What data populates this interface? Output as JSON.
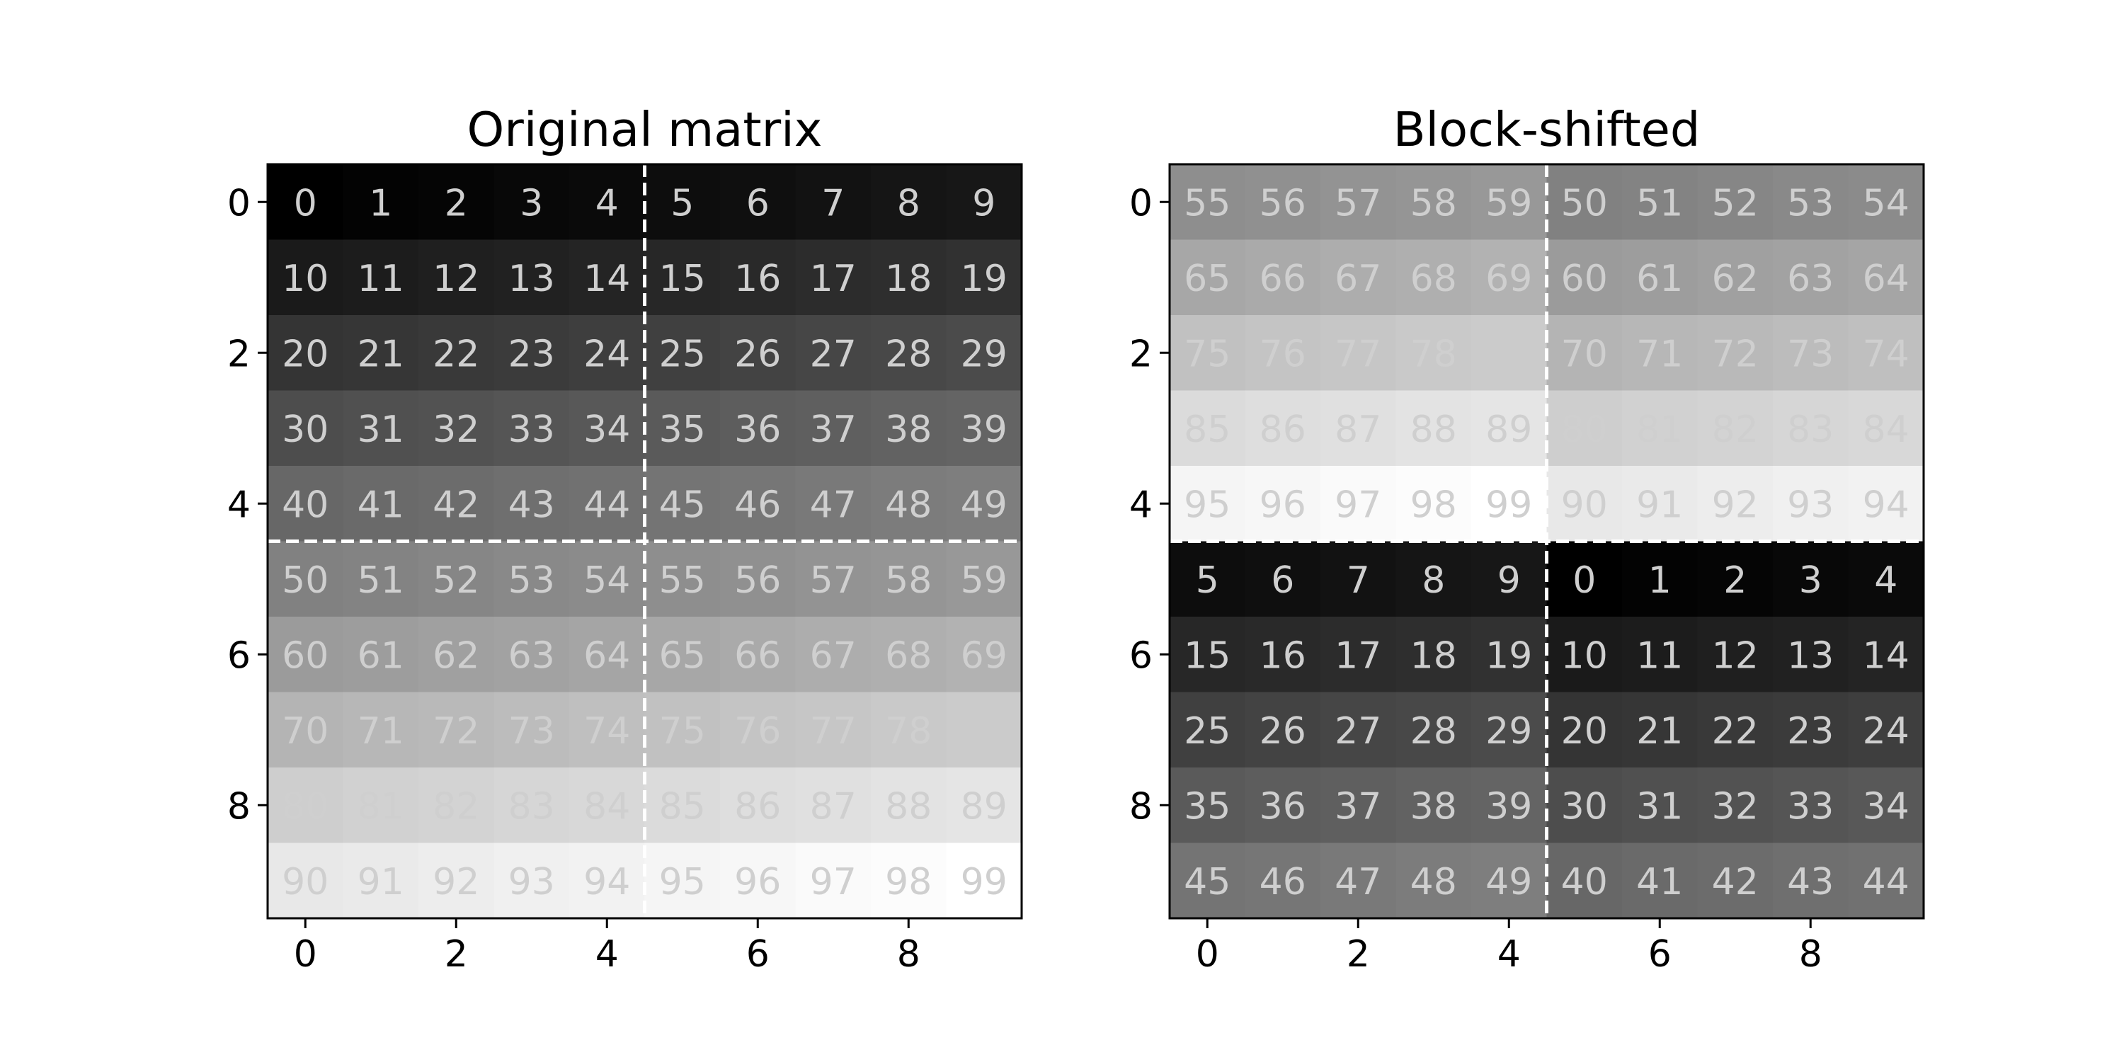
{
  "chart_data": [
    {
      "type": "heatmap",
      "title": "Original matrix",
      "colormap": "grayscale",
      "vmin": 0,
      "vmax": 99,
      "rows": 10,
      "cols": 10,
      "values": [
        [
          0,
          1,
          2,
          3,
          4,
          5,
          6,
          7,
          8,
          9
        ],
        [
          10,
          11,
          12,
          13,
          14,
          15,
          16,
          17,
          18,
          19
        ],
        [
          20,
          21,
          22,
          23,
          24,
          25,
          26,
          27,
          28,
          29
        ],
        [
          30,
          31,
          32,
          33,
          34,
          35,
          36,
          37,
          38,
          39
        ],
        [
          40,
          41,
          42,
          43,
          44,
          45,
          46,
          47,
          48,
          49
        ],
        [
          50,
          51,
          52,
          53,
          54,
          55,
          56,
          57,
          58,
          59
        ],
        [
          60,
          61,
          62,
          63,
          64,
          65,
          66,
          67,
          68,
          69
        ],
        [
          70,
          71,
          72,
          73,
          74,
          75,
          76,
          77,
          78,
          79
        ],
        [
          80,
          81,
          82,
          83,
          84,
          85,
          86,
          87,
          88,
          89
        ],
        [
          90,
          91,
          92,
          93,
          94,
          95,
          96,
          97,
          98,
          99
        ]
      ],
      "labels": [
        [
          "0",
          "1",
          "2",
          "3",
          "4",
          "5",
          "6",
          "7",
          "8",
          "9"
        ],
        [
          "10",
          "11",
          "12",
          "13",
          "14",
          "15",
          "16",
          "17",
          "18",
          "19"
        ],
        [
          "20",
          "21",
          "22",
          "23",
          "24",
          "25",
          "26",
          "27",
          "28",
          "29"
        ],
        [
          "30",
          "31",
          "32",
          "33",
          "34",
          "35",
          "36",
          "37",
          "38",
          "39"
        ],
        [
          "40",
          "41",
          "42",
          "43",
          "44",
          "45",
          "46",
          "47",
          "48",
          "49"
        ],
        [
          "50",
          "51",
          "52",
          "53",
          "54",
          "55",
          "56",
          "57",
          "58",
          "59"
        ],
        [
          "60",
          "61",
          "62",
          "63",
          "64",
          "65",
          "66",
          "67",
          "68",
          "69"
        ],
        [
          "70",
          "71",
          "72",
          "73",
          "74",
          "75",
          "76",
          "77",
          "78",
          ""
        ],
        [
          "80",
          "81",
          "82",
          "83",
          "84",
          "85",
          "86",
          "87",
          "88",
          "89"
        ],
        [
          "90",
          "91",
          "92",
          "93",
          "94",
          "95",
          "96",
          "97",
          "98",
          "99"
        ]
      ],
      "x_ticks": [
        0,
        2,
        4,
        6,
        8
      ],
      "y_ticks": [
        0,
        2,
        4,
        6,
        8
      ],
      "dividers": {
        "vertical_at": 4.5,
        "horizontal_at": 4.5
      }
    },
    {
      "type": "heatmap",
      "title": "Block-shifted",
      "colormap": "grayscale",
      "vmin": 0,
      "vmax": 99,
      "rows": 10,
      "cols": 10,
      "values": [
        [
          55,
          56,
          57,
          58,
          59,
          50,
          51,
          52,
          53,
          54
        ],
        [
          65,
          66,
          67,
          68,
          69,
          60,
          61,
          62,
          63,
          64
        ],
        [
          75,
          76,
          77,
          78,
          79,
          70,
          71,
          72,
          73,
          74
        ],
        [
          85,
          86,
          87,
          88,
          89,
          80,
          81,
          82,
          83,
          84
        ],
        [
          95,
          96,
          97,
          98,
          99,
          90,
          91,
          92,
          93,
          94
        ],
        [
          5,
          6,
          7,
          8,
          9,
          0,
          1,
          2,
          3,
          4
        ],
        [
          15,
          16,
          17,
          18,
          19,
          10,
          11,
          12,
          13,
          14
        ],
        [
          25,
          26,
          27,
          28,
          29,
          20,
          21,
          22,
          23,
          24
        ],
        [
          35,
          36,
          37,
          38,
          39,
          30,
          31,
          32,
          33,
          34
        ],
        [
          45,
          46,
          47,
          48,
          49,
          40,
          41,
          42,
          43,
          44
        ]
      ],
      "labels": [
        [
          "55",
          "56",
          "57",
          "58",
          "59",
          "50",
          "51",
          "52",
          "53",
          "54"
        ],
        [
          "65",
          "66",
          "67",
          "68",
          "69",
          "60",
          "61",
          "62",
          "63",
          "64"
        ],
        [
          "75",
          "76",
          "77",
          "78",
          "",
          "70",
          "71",
          "72",
          "73",
          "74"
        ],
        [
          "85",
          "86",
          "87",
          "88",
          "89",
          "80",
          "81",
          "82",
          "83",
          "84"
        ],
        [
          "95",
          "96",
          "97",
          "98",
          "99",
          "90",
          "91",
          "92",
          "93",
          "94"
        ],
        [
          "5",
          "6",
          "7",
          "8",
          "9",
          "0",
          "1",
          "2",
          "3",
          "4"
        ],
        [
          "15",
          "16",
          "17",
          "18",
          "19",
          "10",
          "11",
          "12",
          "13",
          "14"
        ],
        [
          "25",
          "26",
          "27",
          "28",
          "29",
          "20",
          "21",
          "22",
          "23",
          "24"
        ],
        [
          "35",
          "36",
          "37",
          "38",
          "39",
          "30",
          "31",
          "32",
          "33",
          "34"
        ],
        [
          "45",
          "46",
          "47",
          "48",
          "49",
          "40",
          "41",
          "42",
          "43",
          "44"
        ]
      ],
      "x_ticks": [
        0,
        2,
        4,
        6,
        8
      ],
      "y_ticks": [
        0,
        2,
        4,
        6,
        8
      ],
      "dividers": {
        "vertical_at": 4.5,
        "horizontal_at": 4.5
      }
    }
  ]
}
